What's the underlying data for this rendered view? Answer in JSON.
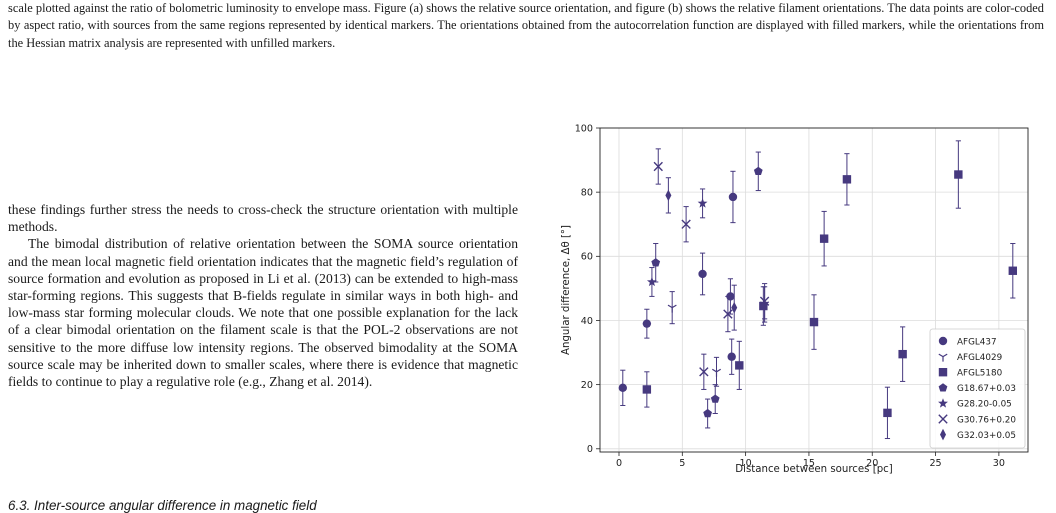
{
  "caption": "scale plotted against the ratio of bolometric luminosity to envelope mass. Figure (a) shows the relative source orientation, and figure (b) shows the relative filament orientations. The data points are color-coded by aspect ratio, with sources from the same regions represented by identical markers. The orientations obtained from the autocorrelation function are displayed with filled markers, while the orientations from the Hessian matrix analysis are represented with unfilled markers.",
  "body": {
    "p1": "these findings further stress the needs to cross-check the structure orientation with multiple methods.",
    "p2": "The bimodal distribution of relative orientation between the SOMA source orientation and the mean local magnetic field orientation indicates that the magnetic field’s regulation of source formation and evolution as proposed in Li et al. (2013) can be extended to high-mass star-forming regions. This suggests that B-fields regulate in similar ways in both high- and low-mass star forming molecular clouds. We note that one possible explanation for the lack of a clear bimodal orientation on the filament scale is that the POL-2 observations are not sensitive to the more diffuse low intensity regions. The observed bimodality at the SOMA source scale may be inherited down to smaller scales, where there is evidence that magnetic fields to continue to play a regulative role (e.g., Zhang et al. 2014).",
    "section_heading": "6.3. Inter-source angular difference in magnetic field"
  },
  "colors": {
    "marker": "#46397f",
    "grid": "#dcdcdc"
  },
  "chart_data": {
    "type": "scatter",
    "xlabel": "Distance between sources [pc]",
    "ylabel": "Angular difference, Δθ [°]",
    "xlim": [
      -1.5,
      32.3
    ],
    "ylim": [
      -1,
      100
    ],
    "xticks": [
      0,
      5,
      10,
      15,
      20,
      25,
      30
    ],
    "yticks": [
      0,
      20,
      40,
      60,
      80,
      100
    ],
    "grid": true,
    "legend_position": "lower-right",
    "series": [
      {
        "name": "AFGL437",
        "marker": "circle",
        "points": [
          {
            "x": 0.3,
            "y": 19,
            "err": 5.5
          },
          {
            "x": 2.2,
            "y": 39,
            "err": 4.5
          },
          {
            "x": 6.6,
            "y": 54.5,
            "err": 6.5
          },
          {
            "x": 8.8,
            "y": 47.5,
            "err": 5.5
          },
          {
            "x": 9.0,
            "y": 78.5,
            "err": 8
          },
          {
            "x": 8.9,
            "y": 28.7,
            "err": 5.5
          }
        ]
      },
      {
        "name": "AFGL4029",
        "marker": "tri_down",
        "points": [
          {
            "x": 4.2,
            "y": 44,
            "err": 5
          },
          {
            "x": 7.7,
            "y": 24,
            "err": 4.5
          },
          {
            "x": 11.5,
            "y": 45,
            "err": 5.5
          }
        ]
      },
      {
        "name": "AFGL5180",
        "marker": "square",
        "points": [
          {
            "x": 2.2,
            "y": 18.5,
            "err": 5.5
          },
          {
            "x": 9.5,
            "y": 26,
            "err": 7.5
          },
          {
            "x": 11.4,
            "y": 44.5,
            "err": 6
          },
          {
            "x": 15.4,
            "y": 39.5,
            "err": 8.5
          },
          {
            "x": 16.2,
            "y": 65.5,
            "err": 8.5
          },
          {
            "x": 18.0,
            "y": 84,
            "err": 8
          },
          {
            "x": 21.2,
            "y": 11.2,
            "err": 8
          },
          {
            "x": 22.4,
            "y": 29.5,
            "err": 8.5
          },
          {
            "x": 26.8,
            "y": 85.5,
            "err": 10.5
          },
          {
            "x": 31.1,
            "y": 55.5,
            "err": 8.5
          }
        ]
      },
      {
        "name": "G18.67+0.03",
        "marker": "pentagon",
        "points": [
          {
            "x": 2.9,
            "y": 58,
            "err": 6
          },
          {
            "x": 7.0,
            "y": 11,
            "err": 4.5
          },
          {
            "x": 7.6,
            "y": 15.5,
            "err": 4.5
          },
          {
            "x": 11.0,
            "y": 86.5,
            "err": 6
          }
        ]
      },
      {
        "name": "G28.20-0.05",
        "marker": "star",
        "points": [
          {
            "x": 2.6,
            "y": 52,
            "err": 4.5
          },
          {
            "x": 6.6,
            "y": 76.5,
            "err": 4.5
          }
        ]
      },
      {
        "name": "G30.76+0.20",
        "marker": "x",
        "points": [
          {
            "x": 3.1,
            "y": 88,
            "err": 5.5
          },
          {
            "x": 5.3,
            "y": 70,
            "err": 5.5
          },
          {
            "x": 6.7,
            "y": 24,
            "err": 5.5
          },
          {
            "x": 8.6,
            "y": 42,
            "err": 5.5
          },
          {
            "x": 11.5,
            "y": 46,
            "err": 5.5
          }
        ]
      },
      {
        "name": "G32.03+0.05",
        "marker": "diamond",
        "points": [
          {
            "x": 3.9,
            "y": 79,
            "err": 5.5
          },
          {
            "x": 9.1,
            "y": 44,
            "err": 7
          }
        ]
      }
    ]
  }
}
